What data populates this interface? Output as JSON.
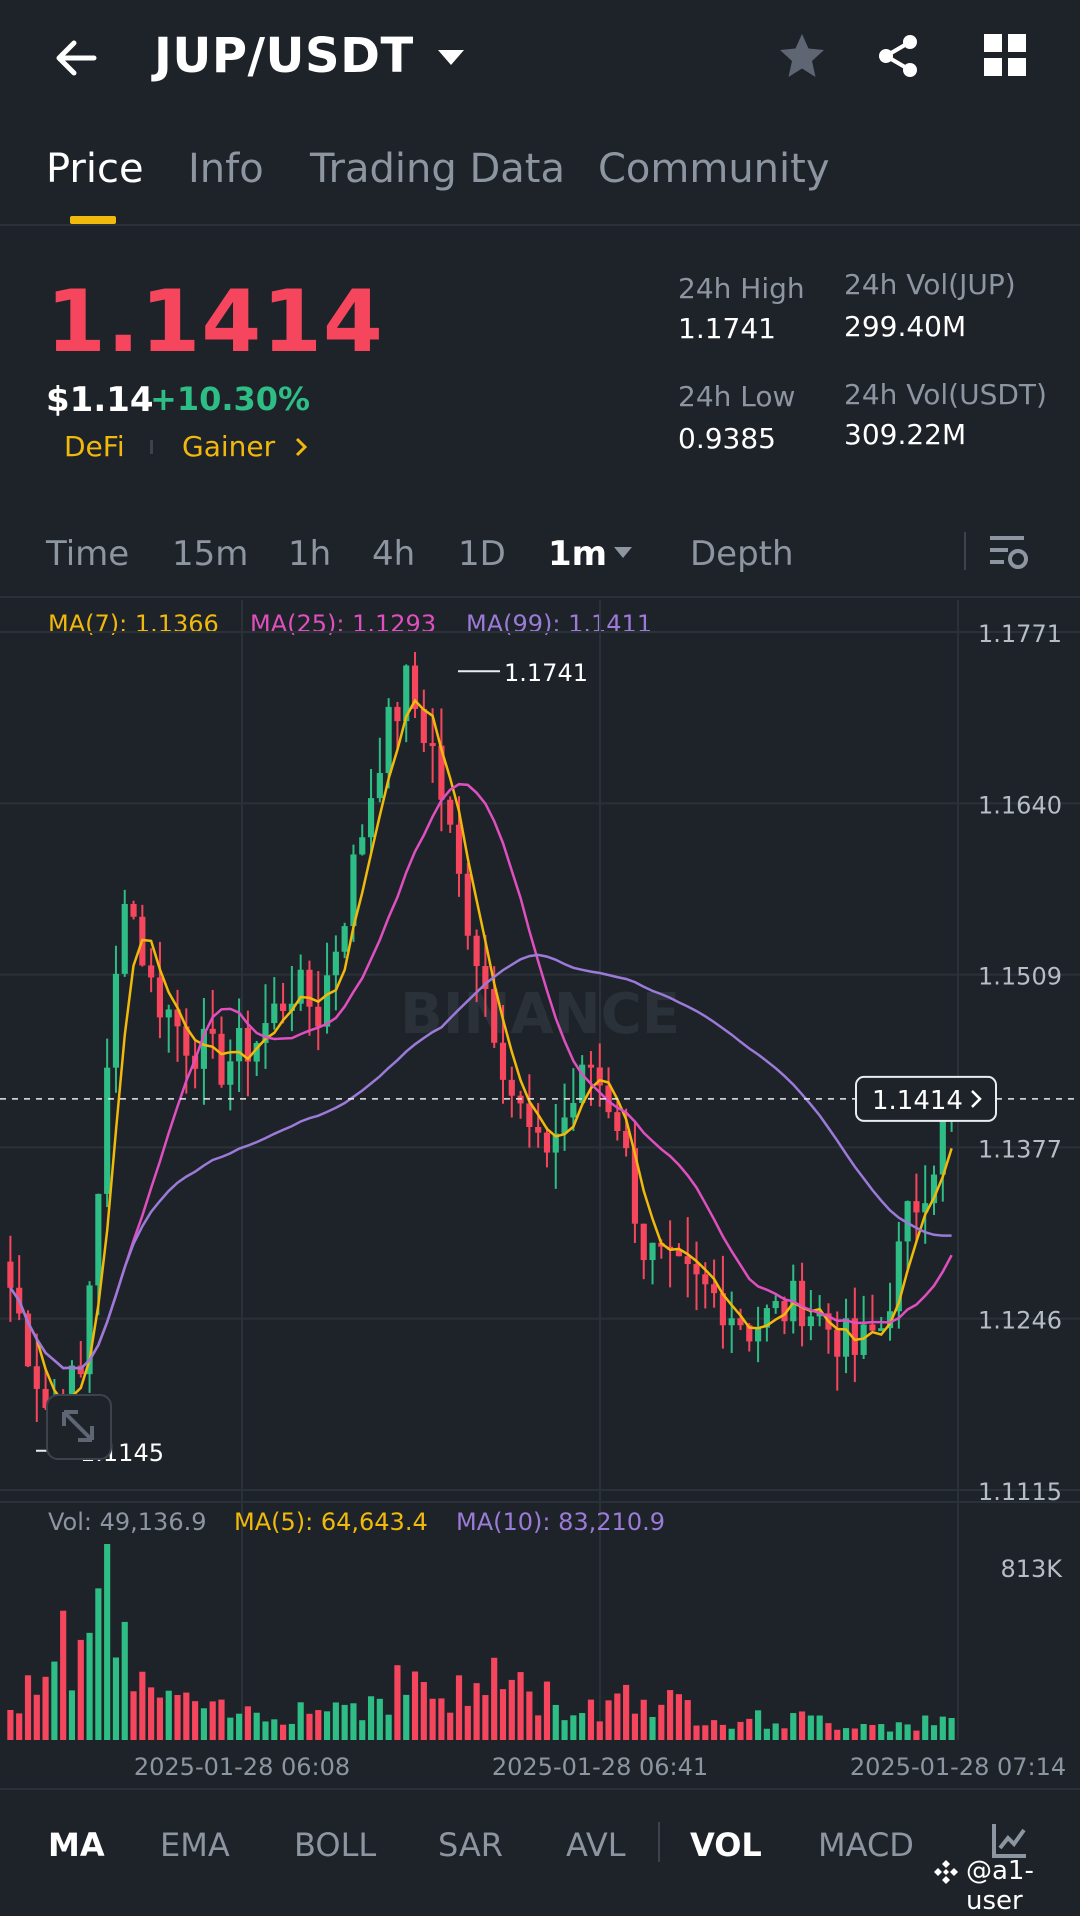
{
  "header": {
    "pair": "JUP/USDT"
  },
  "tabs": [
    {
      "label": "Price",
      "active": true
    },
    {
      "label": "Info",
      "active": false
    },
    {
      "label": "Trading Data",
      "active": false
    },
    {
      "label": "Community",
      "active": false
    }
  ],
  "ticker": {
    "last_price": "1.1414",
    "usd_price": "$1.14",
    "change_pct": "+10.30%",
    "tag_1": "DeFi",
    "tag_2": "Gainer",
    "high_label": "24h High",
    "high_value": "1.1741",
    "low_label": "24h Low",
    "low_value": "0.9385",
    "vol_base_label": "24h Vol(JUP)",
    "vol_base_value": "299.40M",
    "vol_quote_label": "24h Vol(USDT)",
    "vol_quote_value": "309.22M"
  },
  "intervals": {
    "time": "Time",
    "m15": "15m",
    "h1": "1h",
    "h4": "4h",
    "d1": "1D",
    "selected": "1m",
    "depth": "Depth"
  },
  "chart_legend": {
    "ma7": "MA(7): 1.1366",
    "ma25": "MA(25): 1.1293",
    "ma99": "MA(99): 1.1411",
    "vol": "Vol: 49,136.9",
    "vol_ma5": "MA(5): 64,643.4",
    "vol_ma10": "MA(10): 83,210.9"
  },
  "colors": {
    "up": "#2ebd85",
    "down": "#f6465d",
    "ma7": "#f0b90b",
    "ma25": "#e04fbf",
    "ma99": "#9b7ad8",
    "accent": "#f0b90b"
  },
  "chart_data": {
    "type": "candlestick",
    "price_axis_labels": [
      "1.1771",
      "1.1640",
      "1.1509",
      "1.1377",
      "1.1246",
      "1.1115"
    ],
    "ylim": [
      1.1115,
      1.1771
    ],
    "high_marker": "1.1741",
    "low_marker": "1.1145",
    "last_price_tag": "1.1414",
    "volume_axis_label": "813K",
    "x_tick_labels": [
      "2025-01-28 06:08",
      "2025-01-28 06:41",
      "2025-01-28 07:14"
    ],
    "watermark": "BINANCE",
    "price_path_knots": [
      [
        0,
        1.127
      ],
      [
        4,
        1.118
      ],
      [
        8,
        1.12
      ],
      [
        10,
        1.135
      ],
      [
        13,
        1.158
      ],
      [
        16,
        1.15
      ],
      [
        20,
        1.146
      ],
      [
        24,
        1.144
      ],
      [
        28,
        1.146
      ],
      [
        32,
        1.15
      ],
      [
        35,
        1.148
      ],
      [
        38,
        1.156
      ],
      [
        42,
        1.168
      ],
      [
        45,
        1.173
      ],
      [
        48,
        1.168
      ],
      [
        51,
        1.158
      ],
      [
        54,
        1.15
      ],
      [
        57,
        1.142
      ],
      [
        60,
        1.137
      ],
      [
        63,
        1.14
      ],
      [
        66,
        1.144
      ],
      [
        69,
        1.14
      ],
      [
        72,
        1.13
      ],
      [
        75,
        1.128
      ],
      [
        78,
        1.127
      ],
      [
        81,
        1.126
      ],
      [
        84,
        1.124
      ],
      [
        87,
        1.125
      ],
      [
        90,
        1.126
      ],
      [
        93,
        1.124
      ],
      [
        96,
        1.122
      ],
      [
        99,
        1.124
      ],
      [
        102,
        1.132
      ],
      [
        105,
        1.137
      ],
      [
        107,
        1.1414
      ]
    ],
    "volume_knots": [
      [
        0,
        0.25
      ],
      [
        5,
        0.55
      ],
      [
        9,
        0.7
      ],
      [
        10,
        0.95
      ],
      [
        13,
        0.5
      ],
      [
        16,
        0.3
      ],
      [
        20,
        0.2
      ],
      [
        25,
        0.15
      ],
      [
        30,
        0.18
      ],
      [
        35,
        0.2
      ],
      [
        40,
        0.22
      ],
      [
        45,
        0.35
      ],
      [
        48,
        0.28
      ],
      [
        52,
        0.25
      ],
      [
        55,
        0.4
      ],
      [
        58,
        0.3
      ],
      [
        62,
        0.22
      ],
      [
        66,
        0.18
      ],
      [
        70,
        0.3
      ],
      [
        72,
        0.25
      ],
      [
        76,
        0.2
      ],
      [
        80,
        0.15
      ],
      [
        85,
        0.12
      ],
      [
        90,
        0.12
      ],
      [
        95,
        0.1
      ],
      [
        100,
        0.1
      ],
      [
        107,
        0.1
      ]
    ]
  },
  "indicators": [
    {
      "label": "MA",
      "selected": true
    },
    {
      "label": "EMA",
      "selected": false
    },
    {
      "label": "BOLL",
      "selected": false
    },
    {
      "label": "SAR",
      "selected": false
    },
    {
      "label": "AVL",
      "selected": false
    },
    {
      "label": "VOL",
      "selected": true
    },
    {
      "label": "MACD",
      "selected": false
    }
  ],
  "watermark_user": "@a1-user",
  "icons": {
    "back": "back-arrow-icon",
    "caret": "caret-down-icon",
    "star": "star-icon",
    "share": "share-icon",
    "grid": "grid-icon",
    "settings": "chart-settings-icon",
    "expand": "expand-icon",
    "indicator": "indicator-icon"
  }
}
